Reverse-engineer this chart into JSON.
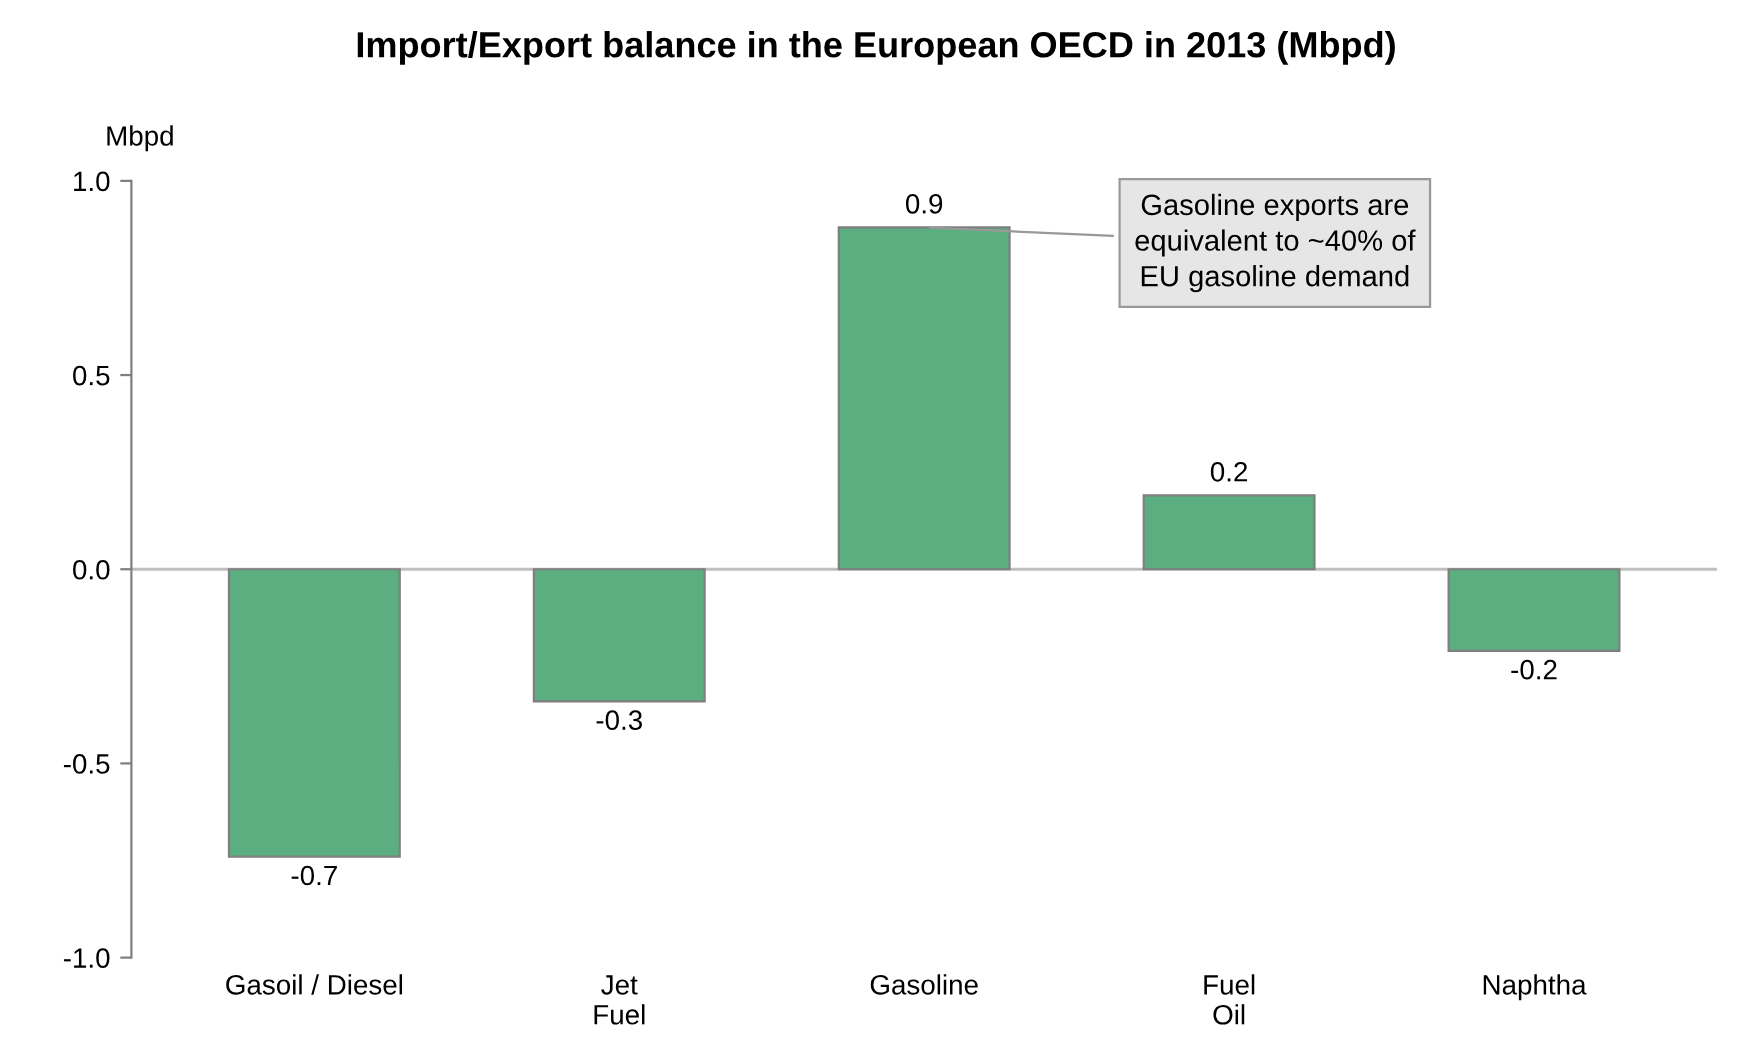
{
  "chart_data": {
    "type": "bar",
    "title": "Import/Export balance in the European OECD in 2013 (Mbpd)",
    "ylabel": "Mbpd",
    "categories": [
      "Gasoil / Diesel",
      "Jet\nFuel",
      "Gasoline",
      "Fuel\nOil",
      "Naphtha"
    ],
    "values": [
      -0.74,
      -0.34,
      0.88,
      0.19,
      -0.21
    ],
    "color": "#5aae7f",
    "value_labels": [
      "-0.7",
      "-0.3",
      "0.9",
      "0.2",
      "-0.2"
    ],
    "ylim": [
      -1.0,
      1.0
    ],
    "yticks": [
      {
        "value": -1.0,
        "label": "-1.0"
      },
      {
        "value": -0.5,
        "label": "-0.5"
      },
      {
        "value": 0.0,
        "label": "0.0"
      },
      {
        "value": 0.5,
        "label": "0.5"
      },
      {
        "value": 1.0,
        "label": "1.0"
      }
    ],
    "annotations": [
      {
        "text": "Gasoline exports are\nequivalent to ~40% of\nEU gasoline demand",
        "x": "Gasoline",
        "y": 0.88
      }
    ],
    "ref_lines": [
      {
        "axis": "y",
        "value": 0.0,
        "color": "#bfbfbf"
      }
    ],
    "grid": false,
    "legend": false
  }
}
